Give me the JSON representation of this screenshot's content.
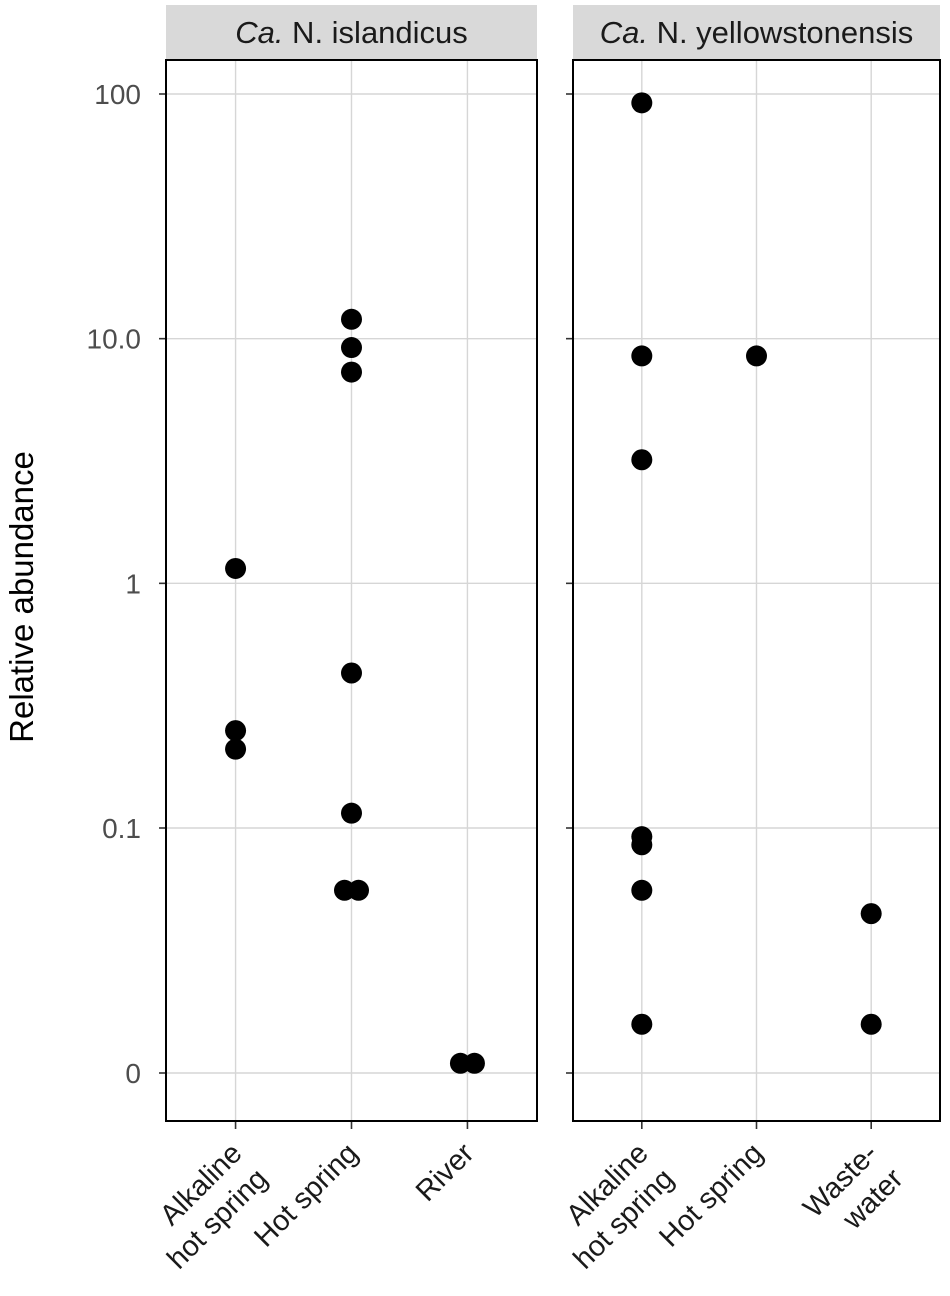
{
  "chart_data": {
    "type": "scatter",
    "ylabel": "Relative abundance",
    "xlabel": "",
    "y_scale": "pseudo-log",
    "y_ticks": [
      0,
      0.1,
      1,
      10,
      100
    ],
    "y_tick_labels": [
      "0",
      "0.1",
      "1",
      "10.0",
      "100"
    ],
    "grid": true,
    "legend": "none",
    "point_color": "#000000",
    "strip_color": "#d9d9d9",
    "panels": [
      {
        "strip_italic": "Ca.",
        "strip_rest": " N. islandicus",
        "categories": [
          "Alkaline\nhot spring",
          "Hot spring",
          "River"
        ],
        "points": [
          {
            "category": "Alkaline\nhot spring",
            "y": 1.15
          },
          {
            "category": "Alkaline\nhot spring",
            "y": 0.25
          },
          {
            "category": "Alkaline\nhot spring",
            "y": 0.21
          },
          {
            "category": "Hot spring",
            "y": 12.0
          },
          {
            "category": "Hot spring",
            "y": 9.2
          },
          {
            "category": "Hot spring",
            "y": 7.3
          },
          {
            "category": "Hot spring",
            "y": 0.43
          },
          {
            "category": "Hot spring",
            "y": 0.115
          },
          {
            "category": "Hot spring",
            "y": 0.031,
            "dodge": -1
          },
          {
            "category": "Hot spring",
            "y": 0.031,
            "dodge": 1
          },
          {
            "category": "River",
            "y": 0.0012,
            "dodge": -1
          },
          {
            "category": "River",
            "y": 0.0012,
            "dodge": 1
          }
        ]
      },
      {
        "strip_italic": "Ca.",
        "strip_rest": " N. yellowstonensis",
        "categories": [
          "Alkaline\nhot spring",
          "Hot spring",
          "Waste-\nwater"
        ],
        "points": [
          {
            "category": "Alkaline\nhot spring",
            "y": 92
          },
          {
            "category": "Alkaline\nhot spring",
            "y": 8.5
          },
          {
            "category": "Alkaline\nhot spring",
            "y": 3.2
          },
          {
            "category": "Alkaline\nhot spring",
            "y": 0.085
          },
          {
            "category": "Alkaline\nhot spring",
            "y": 0.073
          },
          {
            "category": "Alkaline\nhot spring",
            "y": 0.031
          },
          {
            "category": "Alkaline\nhot spring",
            "y": 0.0025
          },
          {
            "category": "Hot spring",
            "y": 8.5
          },
          {
            "category": "Waste-\nwater",
            "y": 0.02
          },
          {
            "category": "Waste-\nwater",
            "y": 0.0025
          }
        ]
      }
    ]
  }
}
